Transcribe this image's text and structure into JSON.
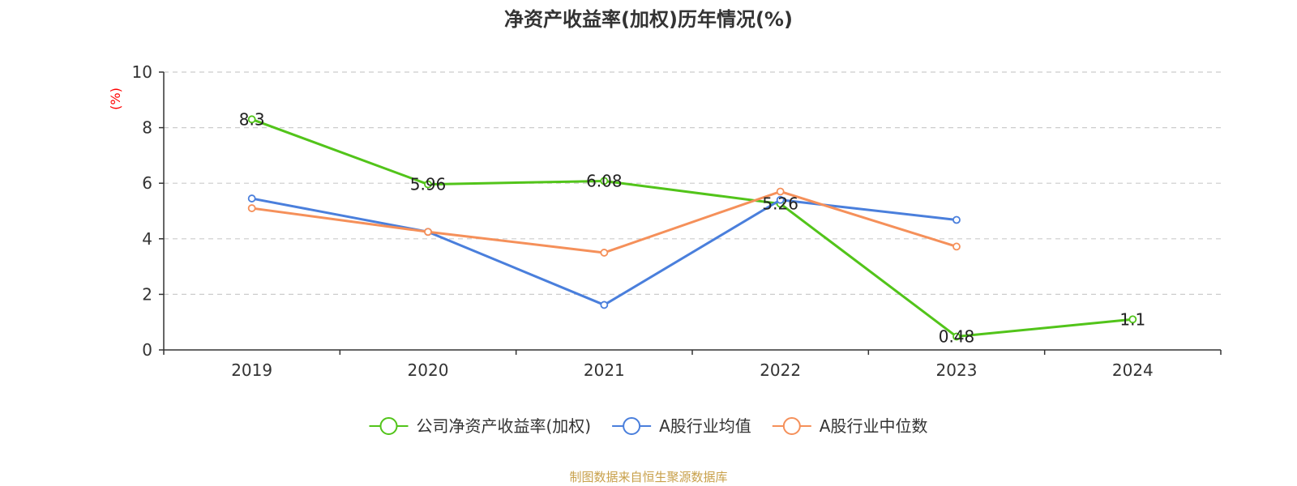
{
  "title": "净资产收益率(加权)历年情况(%)",
  "source": "制图数据来自恒生聚源数据库",
  "colors": {
    "company": "#52c41a",
    "industry_mean": "#4a7fdc",
    "industry_median": "#f5905a",
    "unit": "#ff0000",
    "grid": "#cccccc",
    "axis": "#333333"
  },
  "chart_data": {
    "type": "line",
    "title": "净资产收益率(加权)历年情况(%)",
    "ylabel": "(%)",
    "ylim": [
      0,
      10
    ],
    "yticks": [
      "0",
      "2",
      "4",
      "6",
      "8",
      "10"
    ],
    "categories": [
      "2019",
      "2020",
      "2021",
      "2022",
      "2023",
      "2024"
    ],
    "grid": true,
    "legend_position": "bottom",
    "series": [
      {
        "name": "公司净资产收益率(加权)",
        "values": [
          8.3,
          5.96,
          6.08,
          5.26,
          0.48,
          1.1
        ],
        "labels": [
          "8.3",
          "5.96",
          "6.08",
          "5.26",
          "0.48",
          "1.1"
        ]
      },
      {
        "name": "A股行业均值",
        "values": [
          5.45,
          4.25,
          1.62,
          5.4,
          4.68,
          null
        ]
      },
      {
        "name": "A股行业中位数",
        "values": [
          5.1,
          4.25,
          3.5,
          5.7,
          3.72,
          null
        ]
      }
    ]
  }
}
